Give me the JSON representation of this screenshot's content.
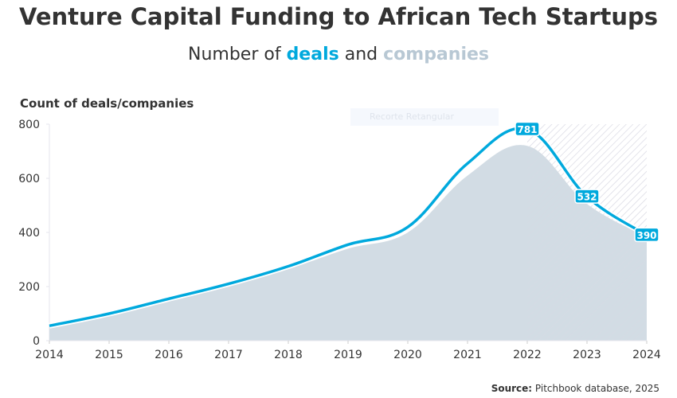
{
  "title": "Venture Capital Funding to African Tech Startups",
  "subtitle": {
    "prefix": "Number of ",
    "deals": "deals",
    "middle": " and ",
    "companies": "companies"
  },
  "overlay_text": "Recorte Retangular",
  "source": {
    "label": "Source:",
    "text": " Pitchbook database, 2025"
  },
  "colors": {
    "deals": "#00a9dd",
    "companies": "#d0dae3",
    "text": "#333333"
  },
  "chart_data": {
    "type": "area",
    "ylabel": "Count of deals/companies",
    "x": [
      2014,
      2015,
      2016,
      2017,
      2018,
      2019,
      2020,
      2021,
      2022,
      2023,
      2024
    ],
    "xlim": [
      2014,
      2024
    ],
    "ylim": [
      0,
      800
    ],
    "yticks": [
      0,
      200,
      400,
      600,
      800
    ],
    "grid": false,
    "highlighted_range": [
      2022,
      2024
    ],
    "series": [
      {
        "name": "deals",
        "type": "line",
        "values": [
          55,
          100,
          155,
          210,
          275,
          355,
          420,
          655,
          781,
          532,
          390
        ],
        "labels": {
          "2022": "781",
          "2023": "532",
          "2024": "390"
        }
      },
      {
        "name": "companies",
        "type": "area",
        "values": [
          52,
          95,
          150,
          205,
          265,
          340,
          400,
          610,
          720,
          505,
          385
        ]
      }
    ]
  }
}
